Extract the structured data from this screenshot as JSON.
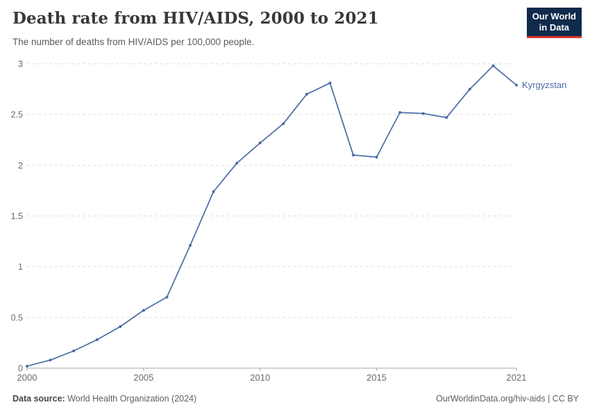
{
  "header": {
    "logo": {
      "line1": "Our World",
      "line2": "in Data"
    }
  },
  "colors": {
    "logo_bg": "#102a4c",
    "logo_accent": "#dc3330",
    "series_blue": "#4a6ba5",
    "gridline": "#dedede",
    "axis": "#a5a5a5",
    "tick_text": "#6b6b6b"
  },
  "chart_data": {
    "type": "line",
    "title": "Death rate from HIV/AIDS, 2000 to 2021",
    "subtitle": "The number of deaths from HIV/AIDS per 100,000 people.",
    "xlabel": "",
    "ylabel": "",
    "x": [
      2000,
      2001,
      2002,
      2003,
      2004,
      2005,
      2006,
      2007,
      2008,
      2009,
      2010,
      2011,
      2012,
      2013,
      2014,
      2015,
      2016,
      2017,
      2018,
      2019,
      2020,
      2021
    ],
    "series": [
      {
        "name": "Kyrgyzstan",
        "color": "#4a6ba5",
        "values": [
          0.02,
          0.08,
          0.17,
          0.28,
          0.41,
          0.57,
          0.7,
          1.21,
          1.74,
          2.02,
          2.22,
          2.41,
          2.7,
          2.81,
          2.1,
          2.08,
          2.52,
          2.51,
          2.47,
          2.75,
          2.98,
          2.79
        ]
      }
    ],
    "xlim": [
      2000,
      2021
    ],
    "ylim": [
      0,
      3
    ],
    "yticks": [
      0,
      0.5,
      1,
      1.5,
      2,
      2.5,
      3
    ],
    "ytick_labels": [
      "0",
      "0.5",
      "1",
      "1.5",
      "2",
      "2.5",
      "3"
    ],
    "xticks": [
      2000,
      2005,
      2010,
      2015,
      2021
    ],
    "grid": "horizontal dashed",
    "legend_position": "end-of-line label"
  },
  "footer": {
    "source_label": "Data source:",
    "source_value": "World Health Organization (2024)",
    "link": "OurWorldinData.org/hiv-aids | CC BY"
  }
}
